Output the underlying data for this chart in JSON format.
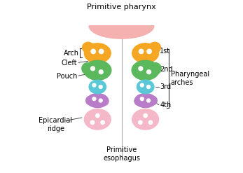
{
  "title": "Primitive pharynx",
  "bottom_center_label": "Primitive\nesophagus",
  "pharyngeal_arches_label": "Pharyngeal\narches",
  "colors": {
    "pharynx_top": "#F5B0B0",
    "arch1_orange": "#F5A623",
    "arch2_green": "#5CB85C",
    "arch3_cyan": "#5BC8D8",
    "arch4_purple": "#B87CC8",
    "epicardial_pink": "#F5B8C8",
    "dot_white": "#FFFFFF",
    "background": "#FFFFFF",
    "center_line": "#AAAAAA",
    "label_line": "#333333"
  },
  "font_size": 7,
  "title_font_size": 8
}
